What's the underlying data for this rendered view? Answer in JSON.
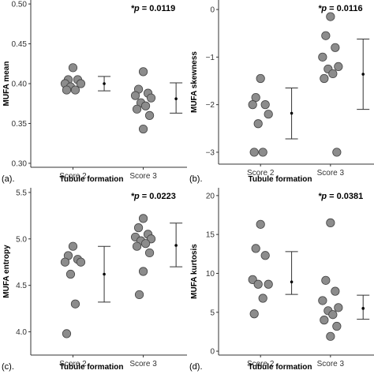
{
  "chart_data": [
    {
      "type": "scatter",
      "panel_label": "(a).",
      "ylabel": "MUFA mean",
      "xlabel": "Tubule formation",
      "categories": [
        "Score 2",
        "Score 3"
      ],
      "pvalue": "= 0.0119",
      "ylim": [
        0.295,
        0.505
      ],
      "yticks": [
        0.3,
        0.35,
        0.4,
        0.45,
        0.5
      ],
      "ytick_labels": [
        "0.30",
        "0.35",
        "0.40",
        "0.45",
        "0.50"
      ],
      "points": [
        [
          0.42,
          0.405,
          0.405,
          0.4,
          0.4,
          0.396,
          0.392,
          0.392
        ],
        [
          0.415,
          0.393,
          0.388,
          0.385,
          0.382,
          0.376,
          0.372,
          0.368,
          0.36,
          0.343
        ]
      ],
      "summary": [
        {
          "mean": 0.4,
          "low": 0.391,
          "high": 0.409
        },
        {
          "mean": 0.381,
          "low": 0.363,
          "high": 0.401
        }
      ]
    },
    {
      "type": "scatter",
      "panel_label": "(b).",
      "ylabel": "MUFA skewness",
      "xlabel": "Tubule formation",
      "categories": [
        "Score 2",
        "Score 3"
      ],
      "pvalue": "= 0.0116",
      "ylim": [
        -3.25,
        0.2
      ],
      "yticks": [
        0,
        -1,
        -2,
        -3
      ],
      "ytick_labels": [
        "0",
        "−1",
        "−2",
        "−3"
      ],
      "points": [
        [
          -1.45,
          -1.85,
          -2.0,
          -2.0,
          -2.2,
          -2.4,
          -3.0,
          -3.0
        ],
        [
          -0.15,
          -0.55,
          -0.8,
          -1.0,
          -1.2,
          -1.25,
          -1.35,
          -1.45,
          -3.0
        ]
      ],
      "summary": [
        {
          "mean": -2.18,
          "low": -2.72,
          "high": -1.65
        },
        {
          "mean": -1.36,
          "low": -2.1,
          "high": -0.62
        }
      ]
    },
    {
      "type": "scatter",
      "panel_label": "(c).",
      "ylabel": "MUFA entropy",
      "xlabel": "Tubule formation",
      "categories": [
        "Score 2",
        "Score 3"
      ],
      "pvalue": "= 0.0223",
      "ylim": [
        3.75,
        5.55
      ],
      "yticks": [
        4.0,
        4.5,
        5.0,
        5.5
      ],
      "ytick_labels": [
        "4.0",
        "4.5",
        "5.0",
        "5.5"
      ],
      "points": [
        [
          4.92,
          4.82,
          4.78,
          4.75,
          4.75,
          4.62,
          4.3,
          3.98
        ],
        [
          5.22,
          5.12,
          5.05,
          5.02,
          5.0,
          4.98,
          4.95,
          4.92,
          4.85,
          4.65,
          4.4
        ]
      ],
      "summary": [
        {
          "mean": 4.62,
          "low": 4.32,
          "high": 4.92
        },
        {
          "mean": 4.93,
          "low": 4.7,
          "high": 5.17
        }
      ]
    },
    {
      "type": "scatter",
      "panel_label": "(d).",
      "ylabel": "MUFA kurtosis",
      "xlabel": "Tubule formation",
      "categories": [
        "Score 2",
        "Score 3"
      ],
      "pvalue": "= 0.0381",
      "ylim": [
        -0.5,
        21
      ],
      "yticks": [
        0,
        5,
        10,
        15,
        20
      ],
      "ytick_labels": [
        "0",
        "5",
        "10",
        "15",
        "20"
      ],
      "points": [
        [
          16.3,
          13.2,
          12.3,
          9.2,
          8.6,
          8.6,
          6.8,
          4.8
        ],
        [
          16.5,
          9.1,
          7.7,
          6.5,
          5.6,
          5.2,
          4.7,
          4.0,
          3.2,
          1.9
        ]
      ],
      "summary": [
        {
          "mean": 8.9,
          "low": 7.3,
          "high": 12.8
        },
        {
          "mean": 5.5,
          "low": 4.1,
          "high": 7.2
        }
      ]
    }
  ],
  "p_prefix": "*p"
}
